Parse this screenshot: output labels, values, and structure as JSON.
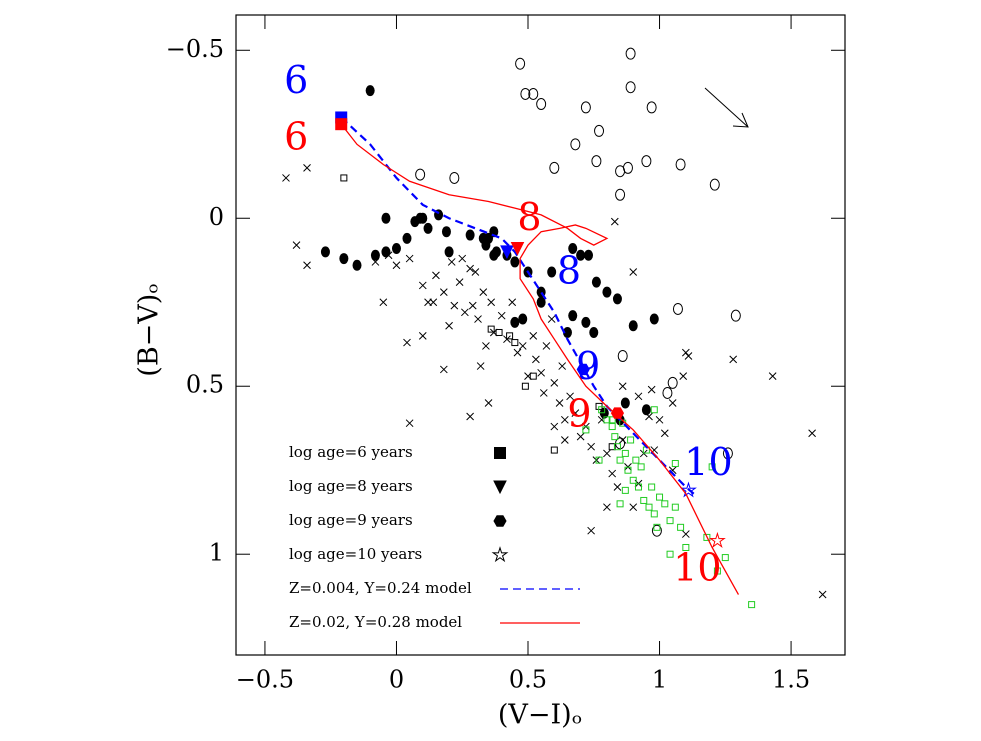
{
  "chart_data": {
    "type": "scatter",
    "xlabel": "(V−I)ₒ",
    "ylabel": "(B−V)ₒ",
    "xlim": [
      -0.61,
      1.705
    ],
    "ylim": [
      1.3,
      -0.605
    ],
    "xticks": [
      {
        "value": -0.5,
        "label": "−0.5"
      },
      0,
      0.5,
      1,
      1.5
    ],
    "yticks": [
      {
        "value": -0.5,
        "label": "−0.5"
      },
      0,
      0.5,
      1
    ],
    "series": [
      {
        "marker": "cross",
        "color": "#000000",
        "x": [
          -0.42,
          -0.34,
          -0.38,
          -0.34,
          -0.05,
          0.04,
          0.1,
          0.05,
          0.28,
          -0.03,
          0.05,
          0.1,
          0.15,
          0.18,
          0.14,
          0.21,
          0.24,
          0.26,
          0.29,
          0.22,
          0.31,
          0.33,
          0.3,
          0.36,
          0.37,
          0.34,
          0.32,
          0.4,
          0.42,
          0.44,
          0.46,
          0.48,
          0.5,
          0.52,
          0.53,
          0.55,
          0.56,
          0.57,
          0.59,
          0.6,
          0.62,
          0.63,
          0.64,
          0.66,
          0.68,
          0.7,
          0.72,
          0.74,
          0.76,
          0.78,
          0.8,
          0.82,
          0.84,
          0.86,
          0.88,
          0.9,
          0.92,
          0.94,
          0.96,
          0.98,
          1.0,
          1.02,
          1.05,
          1.09,
          1.1,
          1.11,
          1.1,
          0.97,
          0.92,
          0.8,
          0.74,
          0.64,
          0.86,
          0.9,
          0.83,
          0.25,
          0.2,
          0.18,
          0.35,
          0.6,
          0.28,
          0.12,
          0.0,
          -0.08,
          1.43,
          1.58,
          1.62,
          1.05,
          1.28
        ],
        "values": [
          -0.12,
          -0.15,
          0.08,
          0.14,
          0.25,
          0.37,
          0.35,
          0.61,
          0.59,
          0.11,
          0.12,
          0.2,
          0.17,
          0.22,
          0.25,
          0.13,
          0.19,
          0.28,
          0.26,
          0.26,
          0.3,
          0.22,
          0.16,
          0.25,
          0.34,
          0.38,
          0.44,
          0.29,
          0.36,
          0.25,
          0.4,
          0.38,
          0.47,
          0.35,
          0.42,
          0.46,
          0.52,
          0.38,
          0.3,
          0.49,
          0.55,
          0.44,
          0.6,
          0.53,
          0.58,
          0.65,
          0.62,
          0.68,
          0.72,
          0.6,
          0.7,
          0.76,
          0.8,
          0.66,
          0.74,
          0.86,
          0.79,
          0.7,
          0.59,
          0.69,
          0.6,
          0.64,
          0.55,
          0.47,
          0.4,
          0.41,
          0.94,
          0.51,
          0.53,
          0.86,
          0.93,
          0.66,
          0.5,
          0.16,
          0.01,
          0.12,
          0.32,
          0.45,
          0.55,
          0.62,
          0.15,
          0.25,
          0.14,
          0.13,
          0.47,
          0.64,
          1.12,
          0.75,
          0.42
        ]
      },
      {
        "marker": "circle-open",
        "color": "#000000",
        "x": [
          0.47,
          0.89,
          0.89,
          0.49,
          0.52,
          0.55,
          0.72,
          0.97,
          0.77,
          0.68,
          0.76,
          0.6,
          0.85,
          0.88,
          0.95,
          1.08,
          1.21,
          0.85,
          0.09,
          0.22,
          1.07,
          1.29,
          0.86,
          1.03,
          1.05,
          1.26,
          0.99,
          0.85
        ],
        "values": [
          -0.46,
          -0.49,
          -0.39,
          -0.37,
          -0.37,
          -0.34,
          -0.33,
          -0.33,
          -0.26,
          -0.22,
          -0.17,
          -0.15,
          -0.14,
          -0.15,
          -0.17,
          -0.16,
          -0.1,
          -0.07,
          -0.13,
          -0.12,
          0.27,
          0.29,
          0.41,
          0.52,
          0.49,
          0.7,
          0.93,
          0.67
        ]
      },
      {
        "marker": "circle-filled",
        "color": "#000000",
        "x": [
          -0.1,
          -0.27,
          -0.2,
          -0.15,
          -0.08,
          -0.04,
          0.0,
          0.04,
          0.12,
          0.19,
          0.2,
          0.1,
          0.07,
          -0.04,
          0.16,
          0.28,
          0.33,
          0.37,
          0.35,
          0.34,
          0.37,
          0.42,
          0.38,
          0.45,
          0.5,
          0.48,
          0.45,
          0.55,
          0.55,
          0.59,
          0.67,
          0.7,
          0.73,
          0.76,
          0.8,
          0.84,
          0.67,
          0.65,
          0.72,
          0.75,
          0.9,
          0.98,
          0.79,
          0.95,
          0.87,
          0.85,
          0.09
        ],
        "values": [
          -0.38,
          0.1,
          0.12,
          0.14,
          0.11,
          0.1,
          0.09,
          0.06,
          0.03,
          0.04,
          0.1,
          0.0,
          0.01,
          0.0,
          -0.01,
          0.05,
          0.06,
          0.04,
          0.06,
          0.08,
          0.11,
          0.11,
          0.1,
          0.13,
          0.16,
          0.3,
          0.31,
          0.22,
          0.25,
          0.16,
          0.09,
          0.11,
          0.11,
          0.19,
          0.22,
          0.24,
          0.29,
          0.34,
          0.31,
          0.34,
          0.32,
          0.3,
          0.58,
          0.57,
          0.55,
          0.6,
          0.0
        ]
      },
      {
        "marker": "square-open",
        "color": "#000000",
        "x": [
          -0.2,
          0.36,
          0.45,
          0.49,
          0.52,
          0.6,
          0.77,
          0.82,
          0.39,
          0.43
        ],
        "values": [
          -0.12,
          0.33,
          0.37,
          0.5,
          0.47,
          0.69,
          0.56,
          0.68,
          0.34,
          0.35
        ]
      },
      {
        "marker": "square-open",
        "color": "#22cc22",
        "x": [
          0.72,
          0.78,
          0.8,
          0.82,
          0.83,
          0.84,
          0.85,
          0.86,
          0.87,
          0.88,
          0.89,
          0.9,
          0.91,
          0.92,
          0.93,
          0.94,
          0.95,
          0.96,
          0.97,
          0.98,
          0.99,
          1.0,
          1.02,
          1.04,
          1.06,
          1.08,
          1.1,
          1.04,
          0.85,
          0.87,
          0.77,
          0.82,
          1.06,
          1.2,
          1.18,
          1.25,
          1.22,
          1.35,
          0.98
        ],
        "values": [
          0.63,
          0.57,
          0.6,
          0.62,
          0.65,
          0.68,
          0.72,
          0.61,
          0.7,
          0.75,
          0.66,
          0.78,
          0.72,
          0.8,
          0.74,
          0.84,
          0.69,
          0.86,
          0.8,
          0.88,
          0.92,
          0.83,
          0.85,
          0.9,
          0.86,
          0.92,
          0.98,
          1.0,
          0.85,
          0.81,
          0.72,
          0.6,
          0.73,
          0.74,
          0.95,
          1.01,
          1.05,
          1.15,
          0.57
        ]
      },
      {
        "marker": "line",
        "dash": true,
        "name": "Z=0.004, Y=0.24 model",
        "color": "#0000ff",
        "x": [
          -0.21,
          -0.1,
          0.0,
          0.1,
          0.2,
          0.3,
          0.4,
          0.45,
          0.5,
          0.55,
          0.6,
          0.65,
          0.7,
          0.75,
          0.8,
          0.9,
          1.0,
          1.1,
          1.13
        ],
        "values": [
          -0.3,
          -0.22,
          -0.12,
          -0.04,
          0.0,
          0.03,
          0.06,
          0.1,
          0.16,
          0.22,
          0.28,
          0.36,
          0.43,
          0.5,
          0.56,
          0.64,
          0.72,
          0.8,
          0.82
        ],
        "age_x": [
          -0.21,
          0.42,
          0.71,
          1.11
        ],
        "age_values": [
          -0.3,
          0.1,
          0.45,
          0.81
        ],
        "age_labels": [
          "6",
          "8",
          "9",
          "10"
        ]
      },
      {
        "marker": "line",
        "dash": false,
        "name": "Z=0.02, Y=0.28 model",
        "color": "#ff0000",
        "x": [
          -0.21,
          -0.15,
          -0.05,
          0.05,
          0.2,
          0.35,
          0.45,
          0.55,
          0.65,
          0.7,
          0.75,
          0.8,
          0.72,
          0.68,
          0.62,
          0.55,
          0.5,
          0.47,
          0.47,
          0.52,
          0.55,
          0.6,
          0.65,
          0.72,
          0.8,
          0.9,
          1.0,
          1.1,
          1.2,
          1.3
        ],
        "values": [
          -0.28,
          -0.22,
          -0.16,
          -0.11,
          -0.07,
          -0.05,
          -0.03,
          -0.01,
          0.03,
          0.06,
          0.08,
          0.06,
          0.03,
          0.02,
          0.03,
          0.04,
          0.08,
          0.12,
          0.18,
          0.24,
          0.3,
          0.36,
          0.42,
          0.5,
          0.56,
          0.63,
          0.72,
          0.82,
          0.98,
          1.12
        ],
        "age_x": [
          -0.21,
          0.46,
          0.84,
          1.22
        ],
        "age_values": [
          -0.28,
          0.09,
          0.58,
          0.96
        ],
        "age_labels": [
          "6",
          "8",
          "9",
          "10"
        ]
      }
    ],
    "age_legend": [
      {
        "label": "log age=6 years",
        "marker": "square"
      },
      {
        "label": "log age=8 years",
        "marker": "triangle"
      },
      {
        "label": "log age=9 years",
        "marker": "hexagon"
      },
      {
        "label": "log age=10 years",
        "marker": "star"
      }
    ]
  }
}
